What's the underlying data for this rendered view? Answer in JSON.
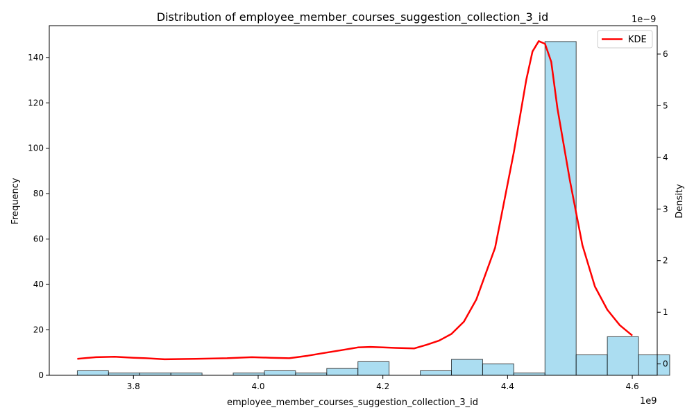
{
  "chart_data": {
    "type": "bar",
    "title": "Distribution of employee_member_courses_suggestion_collection_3_id",
    "xlabel": "employee_member_courses_suggestion_collection_3_id",
    "ylabel": "Frequency",
    "y2label": "Density",
    "x_scale_text": "1e9",
    "y2_scale_text": "1e−9",
    "xlim": [
      3.665,
      4.64
    ],
    "ylim": [
      0,
      154
    ],
    "y2lim": [
      -0.22,
      6.55
    ],
    "x_ticks": [
      3.8,
      4.0,
      4.2,
      4.4,
      4.6
    ],
    "x_tick_labels": [
      "3.8",
      "4.0",
      "4.2",
      "4.4",
      "4.6"
    ],
    "y_ticks": [
      0,
      20,
      40,
      60,
      80,
      100,
      120,
      140
    ],
    "y_tick_labels": [
      "0",
      "20",
      "40",
      "60",
      "80",
      "100",
      "120",
      "140"
    ],
    "y2_ticks": [
      0,
      1,
      2,
      3,
      4,
      5,
      6
    ],
    "y2_tick_labels": [
      "0",
      "1",
      "2",
      "3",
      "4",
      "5",
      "6"
    ],
    "grid": false,
    "legend_position": "top-right",
    "histogram": {
      "bin_edges": [
        3.71,
        3.76,
        3.81,
        3.86,
        3.91,
        3.96,
        4.01,
        4.06,
        4.11,
        4.16,
        4.21,
        4.26,
        4.31,
        4.36,
        4.41,
        4.46,
        4.51,
        4.56,
        4.61
      ],
      "counts": [
        2,
        1,
        1,
        1,
        0,
        1,
        2,
        1,
        3,
        6,
        0,
        2,
        7,
        5,
        1,
        147,
        9,
        17,
        9
      ],
      "bin_starts": [
        3.71,
        3.76,
        3.81,
        3.86,
        3.91,
        3.96,
        4.01,
        4.06,
        4.11,
        4.16,
        4.21,
        4.26,
        4.31,
        4.36,
        4.41,
        4.46,
        4.51,
        4.56,
        4.61
      ],
      "bin_width": 0.05,
      "color": "#87CEEB",
      "edge_color": "#000000"
    },
    "series": [
      {
        "name": "KDE",
        "color": "#ff0000",
        "x": [
          3.71,
          3.74,
          3.77,
          3.8,
          3.82,
          3.85,
          3.9,
          3.95,
          3.99,
          4.02,
          4.05,
          4.08,
          4.11,
          4.14,
          4.16,
          4.18,
          4.2,
          4.22,
          4.25,
          4.27,
          4.29,
          4.31,
          4.33,
          4.35,
          4.38,
          4.41,
          4.43,
          4.44,
          4.45,
          4.46,
          4.47,
          4.48,
          4.5,
          4.52,
          4.54,
          4.56,
          4.58,
          4.6
        ],
        "y": [
          0.1,
          0.13,
          0.14,
          0.12,
          0.11,
          0.09,
          0.1,
          0.11,
          0.13,
          0.12,
          0.11,
          0.16,
          0.22,
          0.28,
          0.32,
          0.33,
          0.32,
          0.31,
          0.3,
          0.37,
          0.45,
          0.58,
          0.82,
          1.25,
          2.25,
          4.1,
          5.5,
          6.05,
          6.25,
          6.2,
          5.85,
          4.95,
          3.55,
          2.3,
          1.5,
          1.05,
          0.75,
          0.55
        ]
      }
    ]
  }
}
